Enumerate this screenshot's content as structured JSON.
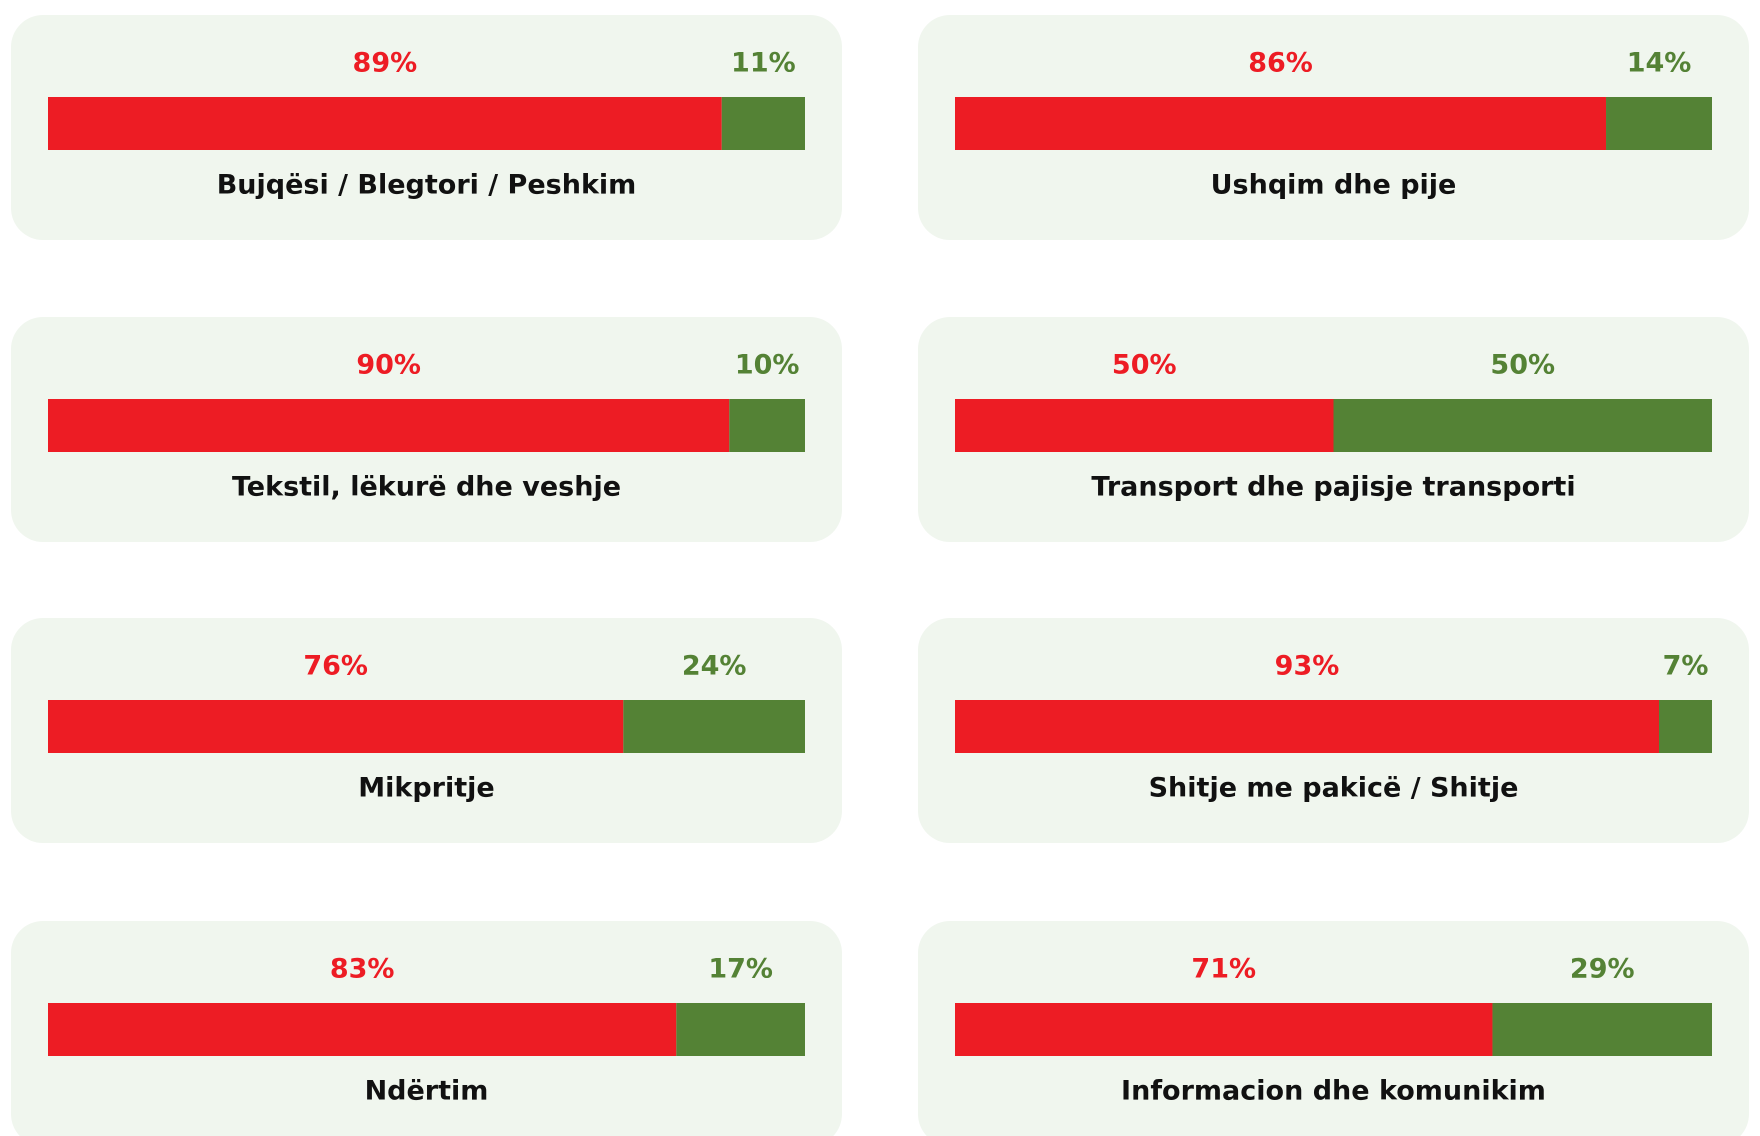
{
  "chart_data": [
    {
      "type": "stacked-bar",
      "title": "Bujqësi / Blegtori / Peshkim",
      "values": [
        89,
        11
      ],
      "value_labels": [
        "89%",
        "11%"
      ],
      "colors": [
        "#ed1c24",
        "#548235"
      ],
      "xlim": [
        0,
        100
      ]
    },
    {
      "type": "stacked-bar",
      "title": "Ushqim dhe pije",
      "values": [
        86,
        14
      ],
      "value_labels": [
        "86%",
        "14%"
      ],
      "colors": [
        "#ed1c24",
        "#548235"
      ],
      "xlim": [
        0,
        100
      ]
    },
    {
      "type": "stacked-bar",
      "title": "Tekstil, lëkurë dhe veshje",
      "values": [
        90,
        10
      ],
      "value_labels": [
        "90%",
        "10%"
      ],
      "colors": [
        "#ed1c24",
        "#548235"
      ],
      "xlim": [
        0,
        100
      ]
    },
    {
      "type": "stacked-bar",
      "title": "Transport dhe pajisje transporti",
      "values": [
        50,
        50
      ],
      "value_labels": [
        "50%",
        "50%"
      ],
      "colors": [
        "#ed1c24",
        "#548235"
      ],
      "xlim": [
        0,
        100
      ]
    },
    {
      "type": "stacked-bar",
      "title": "Mikpritje",
      "values": [
        76,
        24
      ],
      "value_labels": [
        "76%",
        "24%"
      ],
      "colors": [
        "#ed1c24",
        "#548235"
      ],
      "xlim": [
        0,
        100
      ]
    },
    {
      "type": "stacked-bar",
      "title": "Shitje me pakicë / Shitje",
      "values": [
        93,
        7
      ],
      "value_labels": [
        "93%",
        "7%"
      ],
      "colors": [
        "#ed1c24",
        "#548235"
      ],
      "xlim": [
        0,
        100
      ]
    },
    {
      "type": "stacked-bar",
      "title": "Ndërtim",
      "values": [
        83,
        17
      ],
      "value_labels": [
        "83%",
        "17%"
      ],
      "colors": [
        "#ed1c24",
        "#548235"
      ],
      "xlim": [
        0,
        100
      ]
    },
    {
      "type": "stacked-bar",
      "title": "Informacion dhe komunikim",
      "values": [
        71,
        29
      ],
      "value_labels": [
        "71%",
        "29%"
      ],
      "colors": [
        "#ed1c24",
        "#548235"
      ],
      "xlim": [
        0,
        100
      ]
    }
  ]
}
